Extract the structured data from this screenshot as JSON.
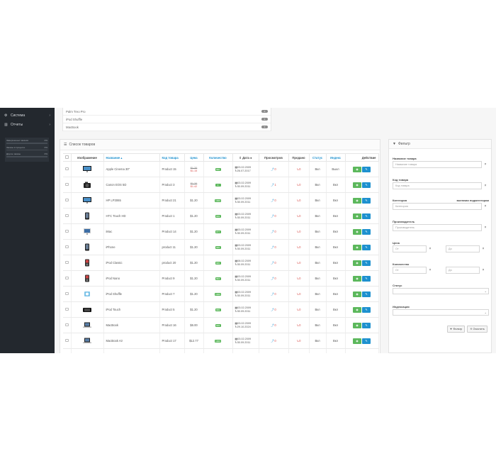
{
  "sidebar": {
    "items": [
      {
        "icon": "gear-icon",
        "glyph": "⚙",
        "label": "Система",
        "arrow": "›"
      },
      {
        "icon": "bar-chart-icon",
        "glyph": "▥",
        "label": "Отчеты",
        "arrow": "›"
      }
    ],
    "stats": [
      {
        "label": "Завершенных заказов",
        "value": "0%",
        "percent": 0
      },
      {
        "label": "Заказы в процессе",
        "value": "0%",
        "percent": 0
      },
      {
        "label": "Другие заказы",
        "value": "0%",
        "percent": 0
      }
    ]
  },
  "top_list": {
    "rows": [
      {
        "name": "Palm Treo Pro",
        "count": "0"
      },
      {
        "name": "iPod Shuffle",
        "count": "0"
      },
      {
        "name": "MacBook",
        "count": "0"
      }
    ]
  },
  "product_list": {
    "title": "Список товаров",
    "headers": {
      "image": "Изображение",
      "name": "Название ▴",
      "model": "Код товара",
      "price": "Цена",
      "quantity": "Количество",
      "date": "⇕ Дата ●",
      "views": "Просмотров",
      "sales": "Продано",
      "status": "Статус",
      "noindex": "Индекс",
      "action": "Действие"
    },
    "rows": [
      {
        "name": "Apple Cinema 30\"",
        "model": "Product 15",
        "price_old": "$1.20",
        "price_new": "$1.15",
        "qty": "990",
        "date_added": "03.02.2009",
        "date_modified": "26.07.2017",
        "views": "0",
        "sales": "0",
        "status": "Вкл",
        "noindex": "Выкл",
        "thumb": "monitor"
      },
      {
        "name": "Canon EOS 5D",
        "model": "Product 3",
        "price_old": "$1.20",
        "price_new": "$1.42",
        "qty": "0",
        "date_added": "03.02.2009",
        "date_modified": "30.09.2011",
        "views": "1",
        "sales": "0",
        "status": "Вкл",
        "noindex": "Вкл",
        "thumb": "camera"
      },
      {
        "name": "HP LP3065",
        "model": "Product 21",
        "price_old": "",
        "price_new": "",
        "price": "$1.20",
        "qty": "1000",
        "date_added": "03.02.2009",
        "date_modified": "30.09.2011",
        "views": "0",
        "sales": "0",
        "status": "Вкл",
        "noindex": "Вкл",
        "thumb": "monitor"
      },
      {
        "name": "HTC Touch HD",
        "model": "Product 1",
        "price_old": "",
        "price_new": "",
        "price": "$1.20",
        "qty": "939",
        "date_added": "03.02.2009",
        "date_modified": "30.09.2011",
        "views": "0",
        "sales": "0",
        "status": "Вкл",
        "noindex": "Вкл",
        "thumb": "phone"
      },
      {
        "name": "iMac",
        "model": "Product 14",
        "price_old": "",
        "price_new": "",
        "price": "$1.20",
        "qty": "977",
        "date_added": "03.02.2009",
        "date_modified": "30.09.2011",
        "views": "0",
        "sales": "0",
        "status": "Вкл",
        "noindex": "Вкл",
        "thumb": "imac"
      },
      {
        "name": "iPhone",
        "model": "product 11",
        "price_old": "",
        "price_new": "",
        "price": "$1.20",
        "qty": "995",
        "date_added": "03.02.2009",
        "date_modified": "30.09.2011",
        "views": "0",
        "sales": "0",
        "status": "Вкл",
        "noindex": "Вкл",
        "thumb": "phone"
      },
      {
        "name": "iPod Classic",
        "model": "product 20",
        "price_old": "",
        "price_new": "",
        "price": "$1.20",
        "qty": "995",
        "date_added": "08.02.2009",
        "date_modified": "30.09.2011",
        "views": "0",
        "sales": "0",
        "status": "Вкл",
        "noindex": "Вкл",
        "thumb": "ipod"
      },
      {
        "name": "iPod Nano",
        "model": "Product 9",
        "price_old": "",
        "price_new": "",
        "price": "$1.20",
        "qty": "994",
        "date_added": "03.02.2009",
        "date_modified": "30.09.2011",
        "views": "0",
        "sales": "0",
        "status": "Вкл",
        "noindex": "Вкл",
        "thumb": "ipod"
      },
      {
        "name": "iPod Shuffle",
        "model": "Product 7",
        "price_old": "",
        "price_new": "",
        "price": "$1.20",
        "qty": "1000",
        "date_added": "03.02.2009",
        "date_modified": "30.09.2011",
        "views": "0",
        "sales": "0",
        "status": "Вкл",
        "noindex": "Вкл",
        "thumb": "shuffle"
      },
      {
        "name": "iPod Touch",
        "model": "Product 5",
        "price_old": "",
        "price_new": "",
        "price": "$1.20",
        "qty": "999",
        "date_added": "03.02.2009",
        "date_modified": "30.09.2011",
        "views": "0",
        "sales": "0",
        "status": "Вкл",
        "noindex": "Вкл",
        "thumb": "ipodtouch"
      },
      {
        "name": "MacBook",
        "model": "Product 16",
        "price_old": "",
        "price_new": "",
        "price": "$6.00",
        "qty": "929",
        "date_added": "03.02.2009",
        "date_modified": "29.10.2024",
        "views": "0",
        "sales": "0",
        "status": "Вкл",
        "noindex": "Вкл",
        "thumb": "laptop"
      },
      {
        "name": "MacBook Air",
        "model": "Product 17",
        "price_old": "",
        "price_new": "",
        "price": "$12.77",
        "qty": "1000",
        "date_added": "03.02.2009",
        "date_modified": "30.09.2011",
        "views": "0",
        "sales": "0",
        "status": "Вкл",
        "noindex": "Вкл",
        "thumb": "laptop"
      },
      {
        "name": "",
        "model": "",
        "price_old": "",
        "price_new": "",
        "price": "",
        "qty": "",
        "date_added": "",
        "date_modified": "",
        "views": "",
        "sales": "",
        "status": "",
        "noindex": "",
        "thumb": "none"
      }
    ]
  },
  "filter": {
    "title": "Фильтр",
    "name_label": "Название товара",
    "name_placeholder": "Название товара",
    "model_label": "Код товара",
    "model_placeholder": "Код товара",
    "category_label": "Категория",
    "category_hint": "включая подкатегории",
    "category_placeholder": "Категория",
    "manufacturer_label": "Производитель",
    "manufacturer_placeholder": "Производитель",
    "price_label": "Цена",
    "price_from": "От",
    "price_to": "До",
    "quantity_label": "Количество",
    "quantity_from": "От",
    "quantity_to": "До",
    "status_label": "Статус",
    "noindex_label": "Индексация",
    "filter_button": "Фильтр",
    "clear_button": "Очистить",
    "clear_glyph": "×"
  },
  "colors": {
    "sidebar_bg": "#23282e",
    "accent_blue": "#1e91cf",
    "accent_green": "#5cb85c",
    "accent_red": "#d9534f"
  }
}
